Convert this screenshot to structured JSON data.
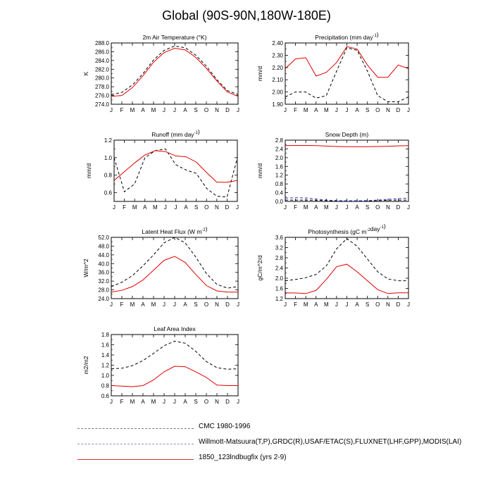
{
  "title": "Global (90S-90N,180W-180E)",
  "months": [
    "J",
    "F",
    "M",
    "A",
    "M",
    "J",
    "J",
    "A",
    "S",
    "O",
    "N",
    "D",
    "J"
  ],
  "legend": [
    {
      "label": "CMC 1980-1996",
      "style": "dashed-black"
    },
    {
      "label": "Willmott-Matsuura(T,P),GRDC(R),USAF/ETAC(S),FLUXNET(LHF,GPP),MODIS(LAI)",
      "style": "dashed-blue"
    },
    {
      "label": "1850_123lndbugfix (yrs 2-9)",
      "style": "solid-red"
    }
  ],
  "colors": {
    "obs_cmc": "#000000",
    "obs_willmott": "#3333cc",
    "model": "#e00000"
  },
  "chart_data": [
    {
      "type": "line",
      "title": "2m Air Temperature (°K)",
      "ylabel": "K",
      "ylim": [
        274,
        288
      ],
      "yticks": [
        "274.0",
        "276.0",
        "278.0",
        "280.0",
        "282.0",
        "284.0",
        "286.0",
        "288.0"
      ],
      "grid": false,
      "series": [
        {
          "role": "obs_cmc",
          "values": [
            276.2,
            276.7,
            278.4,
            281.0,
            284.1,
            286.3,
            287.3,
            286.9,
            285.2,
            282.7,
            279.6,
            277.1,
            276.2
          ]
        },
        {
          "role": "model",
          "values": [
            275.8,
            276.0,
            277.8,
            280.5,
            283.6,
            285.8,
            286.8,
            286.4,
            284.7,
            282.2,
            279.3,
            276.8,
            275.8
          ]
        }
      ]
    },
    {
      "type": "line",
      "title": "Precipitation (mm day-1)",
      "ylabel": "mm/d",
      "ylim": [
        1.9,
        2.4
      ],
      "yticks": [
        "1.90",
        "2.00",
        "2.10",
        "2.20",
        "2.30",
        "2.40"
      ],
      "grid": false,
      "series": [
        {
          "role": "obs_cmc",
          "values": [
            1.96,
            2.0,
            2.0,
            1.95,
            1.97,
            2.17,
            2.36,
            2.34,
            2.17,
            1.97,
            1.92,
            1.92,
            1.96
          ]
        },
        {
          "role": "model",
          "values": [
            2.19,
            2.27,
            2.28,
            2.13,
            2.16,
            2.24,
            2.37,
            2.35,
            2.22,
            2.12,
            2.12,
            2.22,
            2.19
          ]
        }
      ]
    },
    {
      "type": "line",
      "title": "Runoff (mm day-1)",
      "ylabel": "mm/d",
      "ylim": [
        0.5,
        1.2
      ],
      "yticks": [
        "0.6",
        "0.8",
        "1.0",
        "1.2"
      ],
      "grid": false,
      "series": [
        {
          "role": "obs_cmc",
          "values": [
            1.0,
            0.61,
            0.7,
            1.0,
            1.08,
            1.1,
            0.92,
            0.86,
            0.82,
            0.65,
            0.56,
            0.55,
            1.0
          ]
        },
        {
          "role": "model",
          "values": [
            0.74,
            0.84,
            0.94,
            1.03,
            1.08,
            1.07,
            1.02,
            1.01,
            0.95,
            0.83,
            0.72,
            0.72,
            0.74
          ]
        }
      ]
    },
    {
      "type": "line",
      "title": "Snow Depth (m)",
      "ylabel": "mm/d",
      "ylim": [
        0.0,
        2.8
      ],
      "yticks": [
        "0.0",
        "0.4",
        "0.8",
        "1.2",
        "1.6",
        "2.0",
        "2.4",
        "2.8"
      ],
      "grid": false,
      "series": [
        {
          "role": "obs_cmc",
          "values": [
            0.06,
            0.06,
            0.06,
            0.05,
            0.04,
            0.03,
            0.03,
            0.03,
            0.03,
            0.04,
            0.05,
            0.06,
            0.06
          ]
        },
        {
          "role": "obs_willmott",
          "values": [
            0.15,
            0.17,
            0.16,
            0.11,
            0.06,
            0.04,
            0.03,
            0.03,
            0.04,
            0.06,
            0.1,
            0.13,
            0.15
          ]
        },
        {
          "role": "model",
          "values": [
            2.55,
            2.56,
            2.56,
            2.55,
            2.53,
            2.51,
            2.5,
            2.5,
            2.5,
            2.51,
            2.52,
            2.54,
            2.55
          ]
        }
      ]
    },
    {
      "type": "line",
      "title": "Latent Heat Flux (W m-2)",
      "ylabel": "W/m^2",
      "ylim": [
        24,
        52
      ],
      "yticks": [
        "24.0",
        "28.0",
        "32.0",
        "36.0",
        "40.0",
        "44.0",
        "48.0",
        "52.0"
      ],
      "grid": false,
      "series": [
        {
          "role": "obs_cmc",
          "values": [
            29.5,
            31.5,
            34.5,
            39.0,
            44.0,
            49.5,
            52.0,
            49.5,
            43.0,
            35.5,
            30.5,
            28.8,
            29.5
          ]
        },
        {
          "role": "model",
          "values": [
            27.0,
            27.8,
            29.5,
            32.5,
            37.0,
            41.5,
            43.3,
            40.5,
            35.0,
            30.0,
            27.5,
            27.0,
            27.0
          ]
        }
      ]
    },
    {
      "type": "line",
      "title": "Photosynthesis (gC m-2day-1)",
      "ylabel": "gC/m^2/d",
      "ylim": [
        1.2,
        3.6
      ],
      "yticks": [
        "1.2",
        "1.6",
        "2.0",
        "2.4",
        "2.8",
        "3.2",
        "3.6"
      ],
      "grid": false,
      "series": [
        {
          "role": "obs_cmc",
          "values": [
            1.9,
            1.95,
            2.02,
            2.15,
            2.48,
            3.15,
            3.55,
            3.25,
            2.75,
            2.25,
            1.97,
            1.9,
            1.9
          ]
        },
        {
          "role": "model",
          "values": [
            1.43,
            1.42,
            1.4,
            1.52,
            1.95,
            2.45,
            2.55,
            2.25,
            1.9,
            1.55,
            1.4,
            1.43,
            1.43
          ]
        }
      ]
    },
    {
      "type": "line",
      "title": "Leaf Area Index",
      "ylabel": "m2/m2",
      "ylim": [
        0.6,
        1.8
      ],
      "yticks": [
        "0.6",
        "0.8",
        "1.0",
        "1.2",
        "1.4",
        "1.6",
        "1.8"
      ],
      "grid": false,
      "series": [
        {
          "role": "obs_cmc",
          "values": [
            1.13,
            1.14,
            1.19,
            1.29,
            1.43,
            1.58,
            1.67,
            1.63,
            1.47,
            1.27,
            1.15,
            1.12,
            1.13
          ]
        },
        {
          "role": "model",
          "values": [
            0.8,
            0.79,
            0.78,
            0.8,
            0.91,
            1.07,
            1.18,
            1.17,
            1.07,
            0.96,
            0.81,
            0.8,
            0.8
          ]
        }
      ]
    }
  ]
}
